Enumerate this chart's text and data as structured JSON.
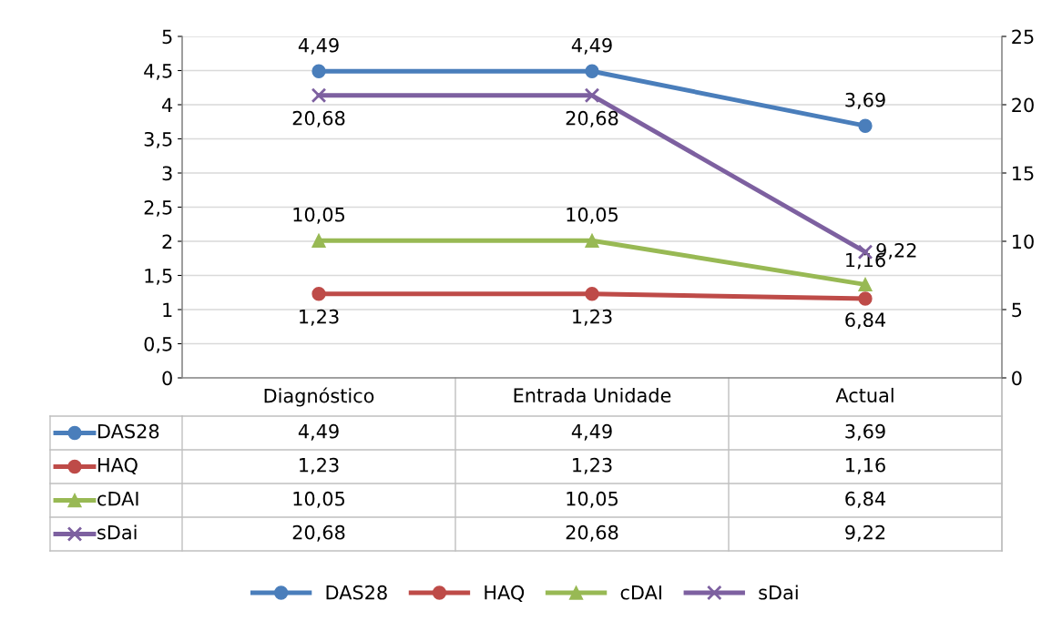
{
  "chart_data": {
    "type": "line",
    "categories": [
      "Diagnóstico",
      "Entrada Unidade",
      "Actual"
    ],
    "series": [
      {
        "name": "DAS28",
        "color": "#4a7ebb",
        "marker": "circle",
        "values": [
          4.49,
          4.49,
          3.69
        ],
        "value_labels": [
          "4,49",
          "4,49",
          "3,69"
        ]
      },
      {
        "name": "HAQ",
        "color": "#be4b48",
        "marker": "circle",
        "values": [
          1.23,
          1.23,
          1.16
        ],
        "value_labels": [
          "1,23",
          "1,23",
          "1,16"
        ]
      },
      {
        "name": "cDAI",
        "color": "#98b954",
        "marker": "triangle",
        "axis": "y2",
        "values": [
          10.05,
          10.05,
          6.84
        ],
        "value_labels": [
          "10,05",
          "10,05",
          "6,84"
        ]
      },
      {
        "name": "sDai",
        "color": "#7d60a0",
        "marker": "cross",
        "axis": "y2",
        "values": [
          20.68,
          20.68,
          9.22
        ],
        "value_labels": [
          "20,68",
          "20,68",
          "9,22"
        ]
      }
    ],
    "ylim": [
      0,
      5
    ],
    "yticks": [
      0,
      {
        "value": 0.5,
        "label": "0,5"
      },
      1,
      {
        "value": 1.5,
        "label": "1,5"
      },
      2,
      {
        "value": 2.5,
        "label": "2,5"
      },
      3,
      {
        "value": 3.5,
        "label": "3,5"
      },
      4,
      {
        "value": 4.5,
        "label": "4,5"
      },
      5
    ],
    "y2lim": [
      0,
      25
    ],
    "y2ticks": [
      0,
      5,
      10,
      15,
      20,
      25
    ],
    "grid": "y",
    "legend": "bottom",
    "line_style": "solid"
  }
}
